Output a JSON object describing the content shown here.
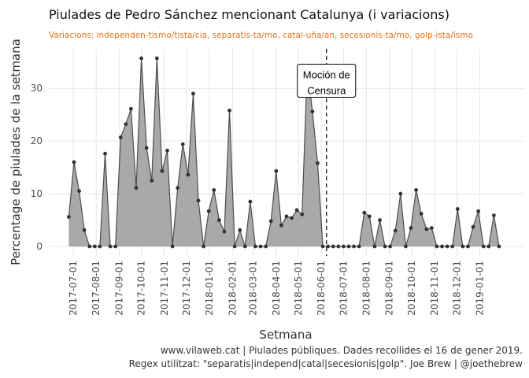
{
  "chart_data": {
    "type": "area",
    "title": "Piulades de Pedro Sánchez mencionant Catalunya (i variacions)",
    "subtitle": "Variacions: independen-tismo/tista/cia, separatis-ta/mo, catal-uña/an, secesionis-ta/mo, golp-ista/ismo",
    "x_label": "Setmana",
    "y_label": "Percentage de piulades de la setmana",
    "caption": [
      "www.vilaweb.cat | Piulades públiques. Dades recollides el 16 de gener 2019.",
      "Regex utilitzat: \"separatis|independ|catal|secesionis|golp\". Joe Brew | @joethebrew"
    ],
    "x": [
      "2017-06-25",
      "2017-07-02",
      "2017-07-09",
      "2017-07-16",
      "2017-07-23",
      "2017-07-30",
      "2017-08-06",
      "2017-08-13",
      "2017-08-20",
      "2017-08-27",
      "2017-09-03",
      "2017-09-10",
      "2017-09-17",
      "2017-09-24",
      "2017-10-01",
      "2017-10-08",
      "2017-10-15",
      "2017-10-22",
      "2017-10-29",
      "2017-11-05",
      "2017-11-12",
      "2017-11-19",
      "2017-11-26",
      "2017-12-03",
      "2017-12-10",
      "2017-12-17",
      "2017-12-24",
      "2017-12-31",
      "2018-01-07",
      "2018-01-14",
      "2018-01-21",
      "2018-01-28",
      "2018-02-04",
      "2018-02-11",
      "2018-02-18",
      "2018-02-25",
      "2018-03-04",
      "2018-03-11",
      "2018-03-18",
      "2018-03-25",
      "2018-04-01",
      "2018-04-08",
      "2018-04-15",
      "2018-04-22",
      "2018-04-29",
      "2018-05-06",
      "2018-05-13",
      "2018-05-20",
      "2018-05-27",
      "2018-06-03",
      "2018-06-10",
      "2018-06-17",
      "2018-06-24",
      "2018-07-01",
      "2018-07-08",
      "2018-07-15",
      "2018-07-22",
      "2018-07-29",
      "2018-08-05",
      "2018-08-12",
      "2018-08-19",
      "2018-08-26",
      "2018-09-02",
      "2018-09-09",
      "2018-09-16",
      "2018-09-23",
      "2018-09-30",
      "2018-10-07",
      "2018-10-14",
      "2018-10-21",
      "2018-10-28",
      "2018-11-04",
      "2018-11-11",
      "2018-11-18",
      "2018-11-25",
      "2018-12-02",
      "2018-12-09",
      "2018-12-16",
      "2018-12-23",
      "2018-12-30",
      "2019-01-06",
      "2019-01-13",
      "2019-01-20",
      "2019-01-27"
    ],
    "values": [
      5.6,
      16,
      10.5,
      3.1,
      0,
      0,
      0,
      17.6,
      0,
      0,
      20.7,
      23.2,
      26.1,
      11.1,
      35.7,
      18.7,
      12.5,
      35.7,
      14.3,
      18.2,
      0,
      11.1,
      19.4,
      13.6,
      29,
      8.7,
      0,
      6.7,
      10.7,
      5,
      2.8,
      25.8,
      0,
      3.1,
      0,
      8.5,
      0,
      0,
      0,
      4.8,
      14.3,
      4,
      5.7,
      5.4,
      6.9,
      6.1,
      34,
      25.6,
      15.8,
      0,
      0,
      0,
      0,
      0,
      0,
      0,
      0,
      6.4,
      5.7,
      0,
      5,
      0,
      0,
      3,
      10,
      0,
      3.5,
      10.7,
      6.2,
      3.3,
      3.5,
      0,
      0,
      0,
      0,
      7.1,
      0,
      0,
      3.7,
      6.7,
      0,
      0,
      5.9,
      0
    ],
    "fill_color": "#a9a9a9",
    "line_color": "#4d4d4d",
    "point_color": "#333333",
    "xlim": [
      "2017-05-29",
      "2019-03-01"
    ],
    "xticks": [
      "2017-07-01",
      "2017-08-01",
      "2017-09-01",
      "2017-10-01",
      "2017-11-01",
      "2017-12-01",
      "2018-01-01",
      "2018-02-01",
      "2018-03-01",
      "2018-04-01",
      "2018-05-01",
      "2018-06-01",
      "2018-07-01",
      "2018-08-01",
      "2018-09-01",
      "2018-10-01",
      "2018-11-01",
      "2018-12-01",
      "2019-01-01"
    ],
    "ylim": [
      -1.8,
      37.5
    ],
    "yticks": [
      0,
      10,
      20,
      30
    ],
    "grid": true,
    "vline": {
      "x": "2018-06-08",
      "label": [
        "Moción de",
        "Censura"
      ],
      "label_y": 31
    }
  }
}
